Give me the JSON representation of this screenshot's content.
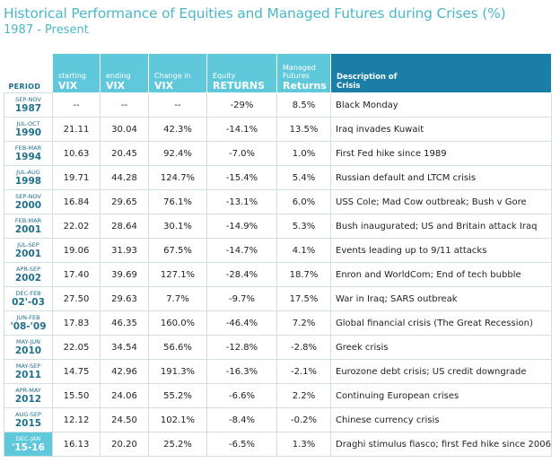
{
  "title": "Historical Performance of Equities and Managed Futures during Crises (%)",
  "subtitle": "1987 - Present",
  "headers": {
    "period": "PERIOD",
    "starting_vix": [
      "starting",
      "VIX"
    ],
    "ending_vix": [
      "ending",
      "VIX"
    ],
    "change_vix": [
      "Change in",
      "VIX"
    ],
    "equity": [
      "Equity",
      "RETURNS"
    ],
    "managed_futures": [
      "Managed",
      "Futures",
      "Returns"
    ],
    "description": [
      "Description of",
      "Crisis"
    ]
  },
  "rows": [
    {
      "months": "SEP-NOV",
      "year": "1987",
      "start": "--",
      "end": "--",
      "change": "--",
      "equity": "-29%",
      "mf": "8.5%",
      "desc": "Black Monday"
    },
    {
      "months": "JUL-OCT",
      "year": "1990",
      "start": "21.11",
      "end": "30.04",
      "change": "42.3%",
      "equity": "-14.1%",
      "mf": "13.5%",
      "desc": "Iraq invades Kuwait"
    },
    {
      "months": "FEB-MAR",
      "year": "1994",
      "start": "10.63",
      "end": "20.45",
      "change": "92.4%",
      "equity": "-7.0%",
      "mf": "1.0%",
      "desc": "First Fed hike since 1989"
    },
    {
      "months": "JUL-AUG",
      "year": "1998",
      "start": "19.71",
      "end": "44.28",
      "change": "124.7%",
      "equity": "-15.4%",
      "mf": "5.4%",
      "desc": "Russian default and LTCM crisis"
    },
    {
      "months": "SEP-NOV",
      "year": "2000",
      "start": "16.84",
      "end": "29.65",
      "change": "76.1%",
      "equity": "-13.1%",
      "mf": "6.0%",
      "desc": "USS Cole; Mad Cow outbreak; Bush v Gore"
    },
    {
      "months": "FEB-MAR",
      "year": "2001",
      "start": "22.02",
      "end": "28.64",
      "change": "30.1%",
      "equity": "-14.9%",
      "mf": "5.3%",
      "desc": "Bush inaugurated; US and Britain attack Iraq"
    },
    {
      "months": "JUL-SEP",
      "year": "2001",
      "start": "19.06",
      "end": "31.93",
      "change": "67.5%",
      "equity": "-14.7%",
      "mf": "4.1%",
      "desc": "Events leading up to 9/11 attacks"
    },
    {
      "months": "APR-SEP",
      "year": "2002",
      "start": "17.40",
      "end": "39.69",
      "change": "127.1%",
      "equity": "-28.4%",
      "mf": "18.7%",
      "desc": "Enron and WorldCom; End of tech bubble"
    },
    {
      "months": "DEC-FEB",
      "year": "02'-03",
      "start": "27.50",
      "end": "29.63",
      "change": "7.7%",
      "equity": "-9.7%",
      "mf": "17.5%",
      "desc": "War in Iraq; SARS outbreak"
    },
    {
      "months": "JUN-FEB",
      "year": "'08-'09",
      "start": "17.83",
      "end": "46.35",
      "change": "160.0%",
      "equity": "-46.4%",
      "mf": "7.2%",
      "desc": "Global financial crisis (The Great Recession)"
    },
    {
      "months": "MAY-JUN",
      "year": "2010",
      "start": "22.05",
      "end": "34.54",
      "change": "56.6%",
      "equity": "-12.8%",
      "mf": "-2.8%",
      "desc": "Greek crisis"
    },
    {
      "months": "MAY-SEP",
      "year": "2011",
      "start": "14.75",
      "end": "42.96",
      "change": "191.3%",
      "equity": "-16.3%",
      "mf": "-2.1%",
      "desc": "Eurozone debt crisis; US credit downgrade"
    },
    {
      "months": "APR-MAY",
      "year": "2012",
      "start": "15.50",
      "end": "24.06",
      "change": "55.2%",
      "equity": "-6.6%",
      "mf": "2.2%",
      "desc": "Continuing European crises"
    },
    {
      "months": "AUG-SEP",
      "year": "2015",
      "start": "12.12",
      "end": "24.50",
      "change": "102.1%",
      "equity": "-8.4%",
      "mf": "-0.2%",
      "desc": "Chinese currency crisis"
    },
    {
      "months": "DEC-JAN",
      "year": "'15-16",
      "start": "16.13",
      "end": "20.20",
      "change": "25.2%",
      "equity": "-6.5%",
      "mf": "1.3%",
      "desc": "Draghi stimulus fiasco; first Fed hike since 2006"
    }
  ],
  "colors": {
    "title": "#4bb8c9",
    "header_light": "#5fc8da",
    "header_dark": "#1a7ea6",
    "period_text": "#1f6f8b"
  }
}
